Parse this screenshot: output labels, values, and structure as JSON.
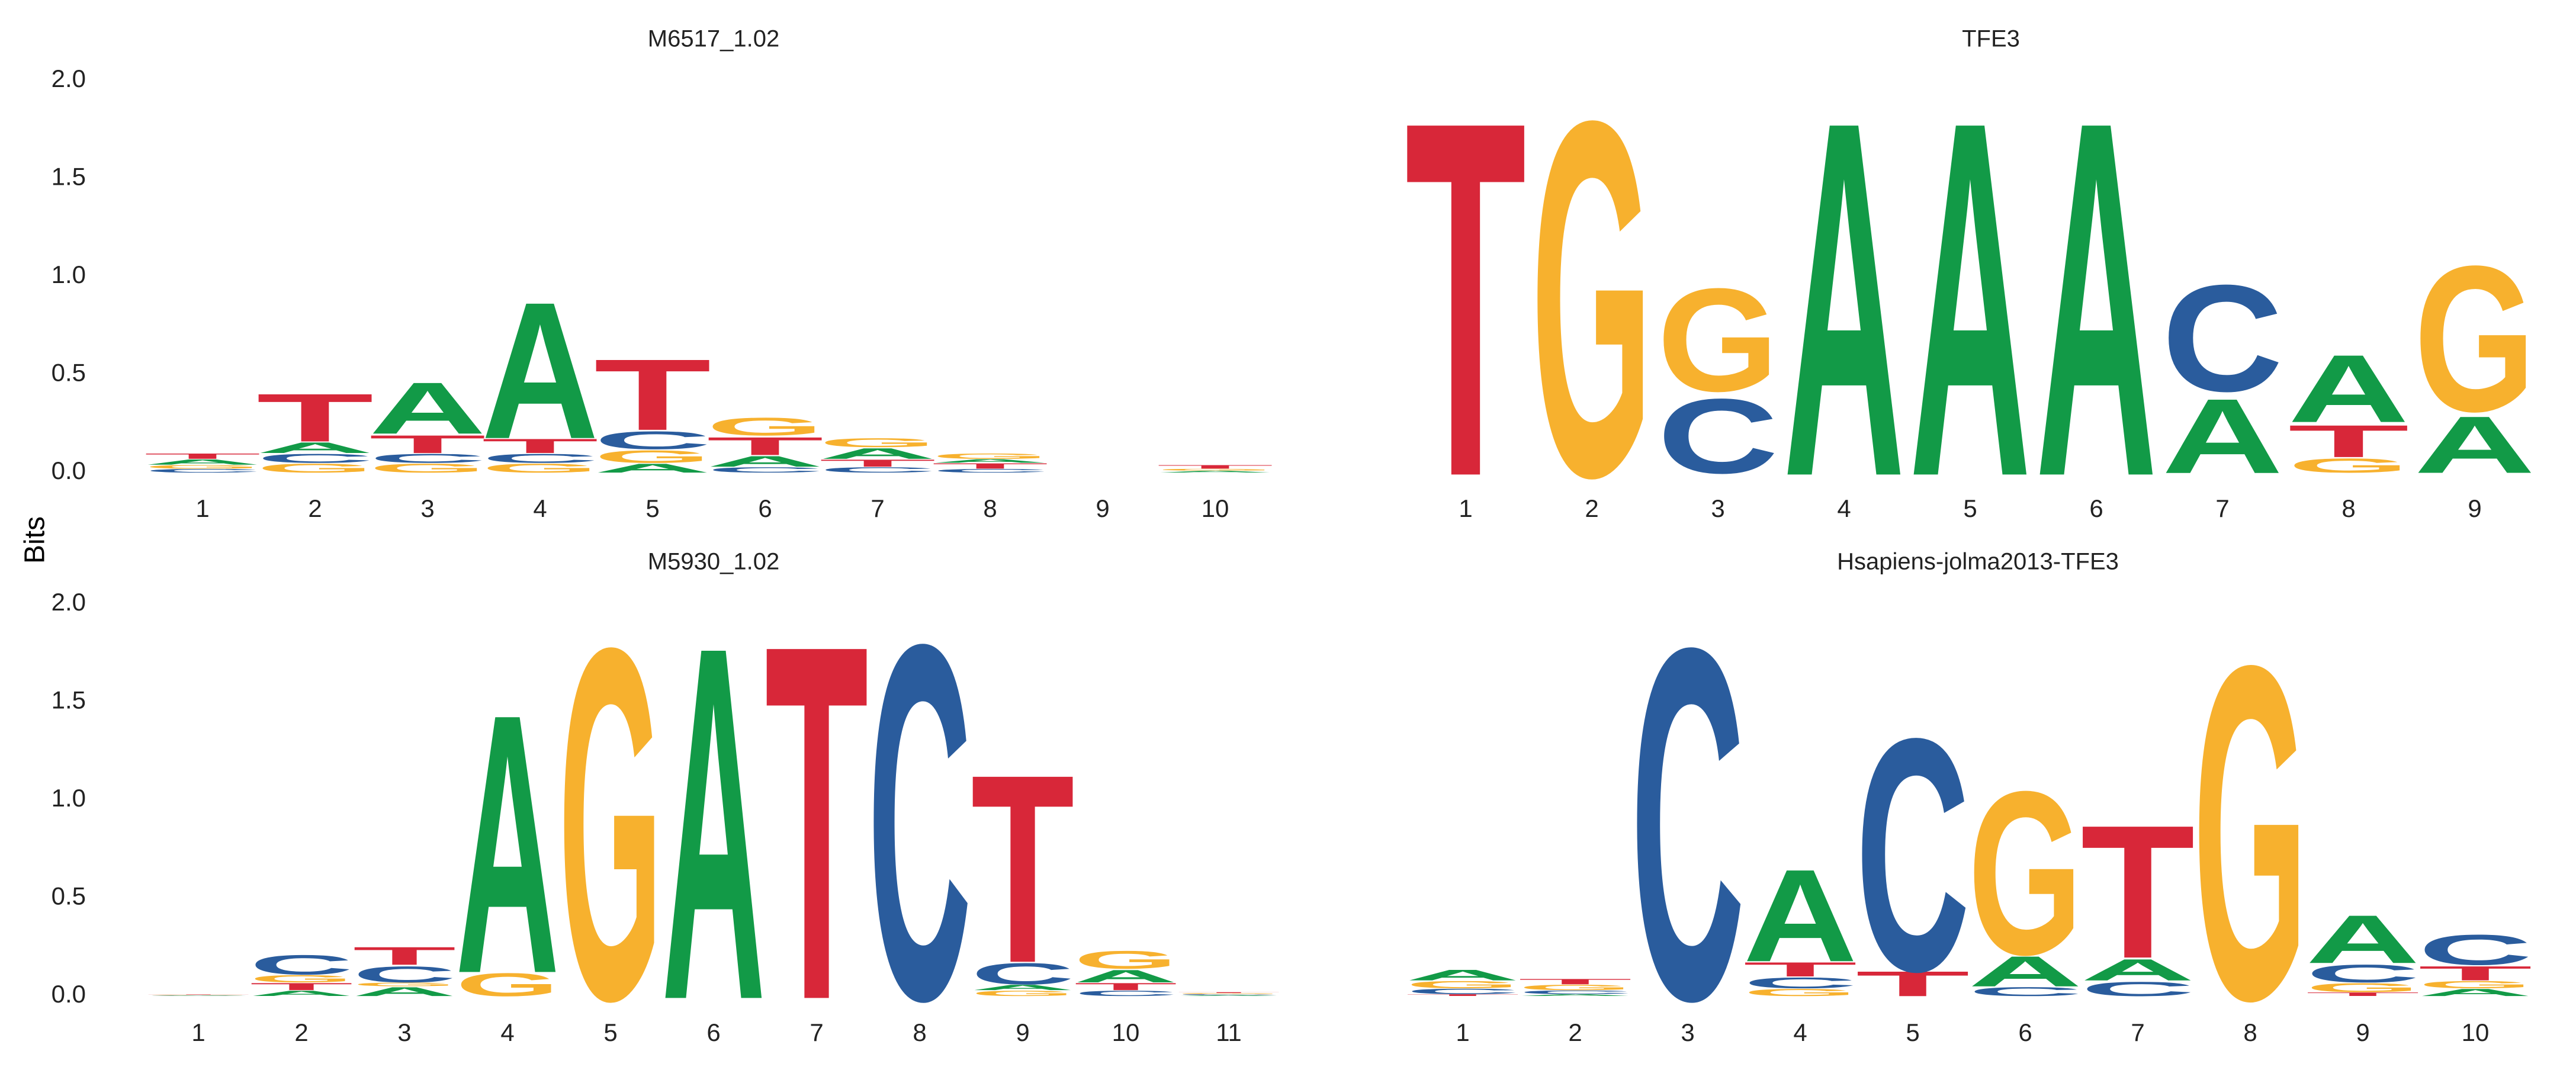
{
  "figure": {
    "ylabel": "Bits",
    "colors": {
      "A": "#129A47",
      "C": "#2A5C9D",
      "G": "#F7B12E",
      "T": "#D82739"
    }
  },
  "chart_data": [
    {
      "type": "sequence-logo",
      "title": "M6517_1.02",
      "ylim": [
        0,
        2.0
      ],
      "yticks": [
        "0.0",
        "0.5",
        "1.0",
        "1.5",
        "2.0"
      ],
      "positions": [
        "1",
        "2",
        "3",
        "4",
        "5",
        "6",
        "7",
        "8",
        "9",
        "10"
      ],
      "stacks": [
        [
          {
            "l": "C",
            "h": 0.02
          },
          {
            "l": "G",
            "h": 0.02
          },
          {
            "l": "A",
            "h": 0.03
          },
          {
            "l": "T",
            "h": 0.03
          }
        ],
        [
          {
            "l": "G",
            "h": 0.05
          },
          {
            "l": "C",
            "h": 0.05
          },
          {
            "l": "A",
            "h": 0.06
          },
          {
            "l": "T",
            "h": 0.27
          }
        ],
        [
          {
            "l": "G",
            "h": 0.05
          },
          {
            "l": "C",
            "h": 0.05
          },
          {
            "l": "T",
            "h": 0.1
          },
          {
            "l": "A",
            "h": 0.29
          }
        ],
        [
          {
            "l": "G",
            "h": 0.05
          },
          {
            "l": "C",
            "h": 0.05
          },
          {
            "l": "T",
            "h": 0.08
          },
          {
            "l": "A",
            "h": 0.77
          }
        ],
        [
          {
            "l": "A",
            "h": 0.05
          },
          {
            "l": "G",
            "h": 0.07
          },
          {
            "l": "C",
            "h": 0.1
          },
          {
            "l": "T",
            "h": 0.4
          }
        ],
        [
          {
            "l": "C",
            "h": 0.03
          },
          {
            "l": "A",
            "h": 0.06
          },
          {
            "l": "T",
            "h": 0.1
          },
          {
            "l": "G",
            "h": 0.1
          }
        ],
        [
          {
            "l": "C",
            "h": 0.03
          },
          {
            "l": "T",
            "h": 0.04
          },
          {
            "l": "A",
            "h": 0.06
          },
          {
            "l": "G",
            "h": 0.05
          }
        ],
        [
          {
            "l": "C",
            "h": 0.02
          },
          {
            "l": "T",
            "h": 0.03
          },
          {
            "l": "A",
            "h": 0.02
          },
          {
            "l": "G",
            "h": 0.03
          }
        ],
        [],
        [
          {
            "l": "A",
            "h": 0.01
          },
          {
            "l": "G",
            "h": 0.01
          },
          {
            "l": "T",
            "h": 0.02
          }
        ]
      ]
    },
    {
      "type": "sequence-logo",
      "title": "TFE3",
      "ylim": [
        0,
        2.0
      ],
      "yticks": [
        "0.0",
        "0.5",
        "1.0",
        "1.5",
        "2.0"
      ],
      "positions": [
        "1",
        "2",
        "3",
        "4",
        "5",
        "6",
        "7",
        "8",
        "9"
      ],
      "stacks": [
        [
          {
            "l": "T",
            "h": 2.0
          }
        ],
        [
          {
            "l": "G",
            "h": 2.0
          }
        ],
        [
          {
            "l": "C",
            "h": 0.42
          },
          {
            "l": "G",
            "h": 0.58
          }
        ],
        [
          {
            "l": "A",
            "h": 2.0
          }
        ],
        [
          {
            "l": "A",
            "h": 2.0
          }
        ],
        [
          {
            "l": "A",
            "h": 2.0
          }
        ],
        [
          {
            "l": "A",
            "h": 0.42
          },
          {
            "l": "C",
            "h": 0.6
          }
        ],
        [
          {
            "l": "G",
            "h": 0.08
          },
          {
            "l": "T",
            "h": 0.18
          },
          {
            "l": "A",
            "h": 0.38
          }
        ],
        [
          {
            "l": "A",
            "h": 0.32
          },
          {
            "l": "G",
            "h": 0.82
          }
        ]
      ]
    },
    {
      "type": "sequence-logo",
      "title": "M5930_1.02",
      "ylim": [
        0,
        2.0
      ],
      "yticks": [
        "0.0",
        "0.5",
        "1.0",
        "1.5",
        "2.0"
      ],
      "positions": [
        "1",
        "2",
        "3",
        "4",
        "5",
        "6",
        "7",
        "8",
        "9",
        "10",
        "11"
      ],
      "stacks": [
        [
          {
            "l": "A",
            "h": 0.002
          },
          {
            "l": "C",
            "h": 0.002
          },
          {
            "l": "G",
            "h": 0.002
          },
          {
            "l": "T",
            "h": 0.002
          }
        ],
        [
          {
            "l": "A",
            "h": 0.03
          },
          {
            "l": "T",
            "h": 0.04
          },
          {
            "l": "G",
            "h": 0.04
          },
          {
            "l": "C",
            "h": 0.11
          }
        ],
        [
          {
            "l": "A",
            "h": 0.05
          },
          {
            "l": "G",
            "h": 0.02
          },
          {
            "l": "C",
            "h": 0.09
          },
          {
            "l": "T",
            "h": 0.1
          }
        ],
        [
          {
            "l": "G",
            "h": 0.13
          },
          {
            "l": "A",
            "h": 1.46
          }
        ],
        [
          {
            "l": "G",
            "h": 1.98
          }
        ],
        [
          {
            "l": "A",
            "h": 1.99
          }
        ],
        [
          {
            "l": "T",
            "h": 2.0
          }
        ],
        [
          {
            "l": "C",
            "h": 2.0
          }
        ],
        [
          {
            "l": "G",
            "h": 0.03
          },
          {
            "l": "A",
            "h": 0.03
          },
          {
            "l": "C",
            "h": 0.12
          },
          {
            "l": "T",
            "h": 1.06
          }
        ],
        [
          {
            "l": "C",
            "h": 0.03
          },
          {
            "l": "T",
            "h": 0.04
          },
          {
            "l": "A",
            "h": 0.07
          },
          {
            "l": "G",
            "h": 0.1
          }
        ],
        [
          {
            "l": "A",
            "h": 0.005
          },
          {
            "l": "C",
            "h": 0.005
          },
          {
            "l": "G",
            "h": 0.005
          },
          {
            "l": "T",
            "h": 0.005
          }
        ]
      ]
    },
    {
      "type": "sequence-logo",
      "title": "Hsapiens-jolma2013-TFE3",
      "ylim": [
        0,
        2.0
      ],
      "yticks": [
        "0.0",
        "0.5",
        "1.0",
        "1.5",
        "2.0"
      ],
      "positions": [
        "1",
        "2",
        "3",
        "4",
        "5",
        "6",
        "7",
        "8",
        "9",
        "10"
      ],
      "stacks": [
        [
          {
            "l": "T",
            "h": 0.01
          },
          {
            "l": "C",
            "h": 0.03
          },
          {
            "l": "G",
            "h": 0.04
          },
          {
            "l": "A",
            "h": 0.06
          }
        ],
        [
          {
            "l": "A",
            "h": 0.01
          },
          {
            "l": "C",
            "h": 0.02
          },
          {
            "l": "G",
            "h": 0.03
          },
          {
            "l": "T",
            "h": 0.03
          }
        ],
        [
          {
            "l": "C",
            "h": 1.98
          }
        ],
        [
          {
            "l": "G",
            "h": 0.04
          },
          {
            "l": "C",
            "h": 0.06
          },
          {
            "l": "T",
            "h": 0.08
          },
          {
            "l": "A",
            "h": 0.52
          }
        ],
        [
          {
            "l": "T",
            "h": 0.14
          },
          {
            "l": "C",
            "h": 1.31
          }
        ],
        [
          {
            "l": "C",
            "h": 0.05
          },
          {
            "l": "A",
            "h": 0.17
          },
          {
            "l": "G",
            "h": 0.92
          }
        ],
        [
          {
            "l": "C",
            "h": 0.08
          },
          {
            "l": "A",
            "h": 0.12
          },
          {
            "l": "T",
            "h": 0.75
          }
        ],
        [
          {
            "l": "G",
            "h": 1.88
          }
        ],
        [
          {
            "l": "T",
            "h": 0.02
          },
          {
            "l": "G",
            "h": 0.05
          },
          {
            "l": "C",
            "h": 0.1
          },
          {
            "l": "A",
            "h": 0.27
          }
        ],
        [
          {
            "l": "A",
            "h": 0.04
          },
          {
            "l": "G",
            "h": 0.04
          },
          {
            "l": "T",
            "h": 0.08
          },
          {
            "l": "C",
            "h": 0.17
          }
        ]
      ]
    }
  ]
}
